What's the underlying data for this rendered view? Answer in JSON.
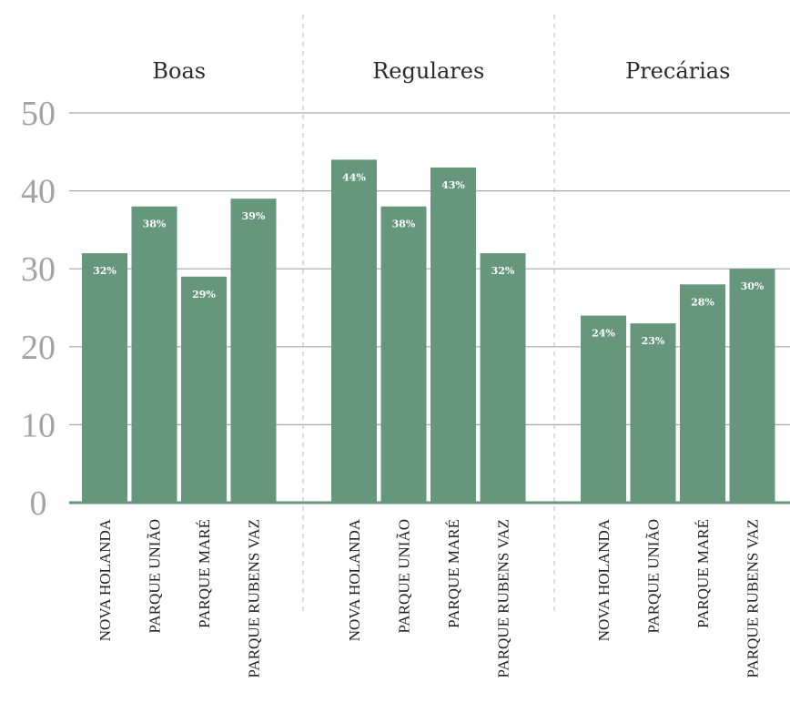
{
  "chart_data": {
    "type": "bar",
    "panels": [
      {
        "title": "Boas",
        "categories": [
          "NOVA HOLANDA",
          "PARQUE UNIÃO",
          "PARQUE MARÉ",
          "PARQUE RUBENS VAZ"
        ],
        "values": [
          32,
          38,
          29,
          39
        ],
        "labels": [
          "32%",
          "38%",
          "29%",
          "39%"
        ]
      },
      {
        "title": "Regulares",
        "categories": [
          "NOVA HOLANDA",
          "PARQUE UNIÃO",
          "PARQUE MARÉ",
          "PARQUE RUBENS VAZ"
        ],
        "values": [
          44,
          38,
          43,
          32
        ],
        "labels": [
          "44%",
          "38%",
          "43%",
          "32%"
        ]
      },
      {
        "title": "Precárias",
        "categories": [
          "NOVA HOLANDA",
          "PARQUE UNIÃO",
          "PARQUE MARÉ",
          "PARQUE RUBENS VAZ"
        ],
        "values": [
          24,
          23,
          28,
          30
        ],
        "labels": [
          "24%",
          "23%",
          "28%",
          "30%"
        ]
      }
    ],
    "yticks": [
      "0",
      "10",
      "20",
      "30",
      "40",
      "50"
    ],
    "ylim": [
      0,
      50
    ],
    "grid": true,
    "colors": {
      "bar": "#66977c",
      "baseline": "#66977c",
      "grid": "#a8a8a8",
      "separator": "#b8b8b8"
    }
  }
}
